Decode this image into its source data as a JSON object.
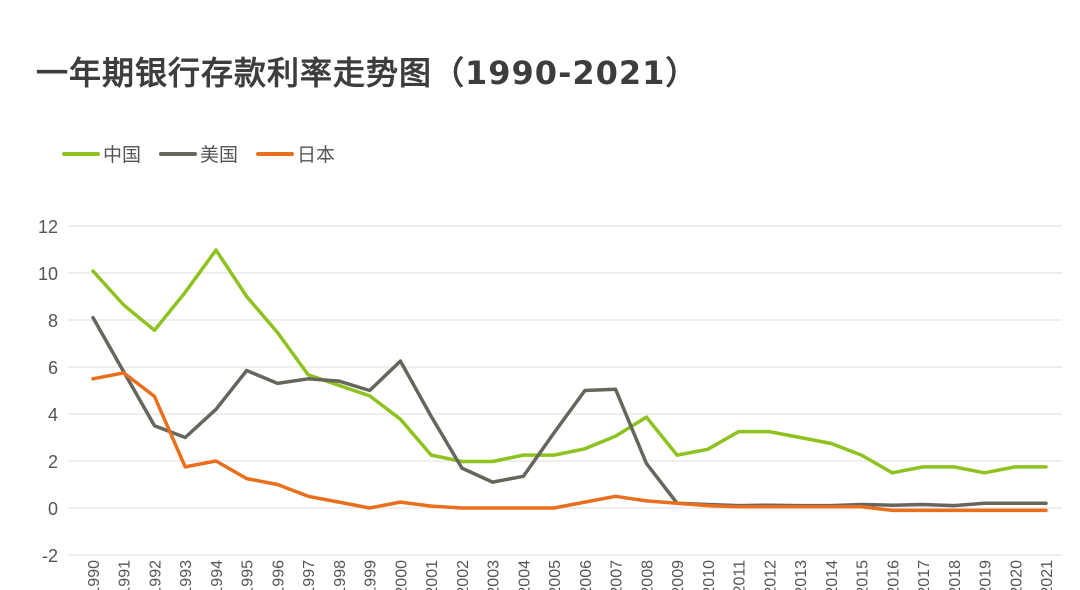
{
  "chart_data": {
    "type": "line",
    "title": "一年期银行存款利率走势图（1990-2021）",
    "xlabel": "",
    "ylabel": "",
    "ylim": [
      -2,
      12
    ],
    "yticks": [
      -2,
      0,
      2,
      4,
      6,
      8,
      10,
      12
    ],
    "grid": true,
    "legend_position": "top-left",
    "x": [
      "1990",
      "1991",
      "1992",
      "1993",
      "1994",
      "1995",
      "1996",
      "1997",
      "1998",
      "1999",
      "2000",
      "2001",
      "2002",
      "2003",
      "2004",
      "2005",
      "2006",
      "2007",
      "2008",
      "2009",
      "2010",
      "2011",
      "2012",
      "2013",
      "2014",
      "2015",
      "2016",
      "2017",
      "2018",
      "2019",
      "2020",
      "2021"
    ],
    "series": [
      {
        "name": "中国",
        "color": "#8dc21f",
        "values": [
          10.08,
          8.64,
          7.56,
          9.18,
          10.98,
          9.0,
          7.47,
          5.67,
          5.22,
          4.77,
          3.78,
          2.25,
          1.98,
          1.98,
          2.25,
          2.25,
          2.52,
          3.06,
          3.87,
          2.25,
          2.5,
          3.25,
          3.25,
          3.0,
          2.75,
          2.25,
          1.5,
          1.75,
          1.75,
          1.5,
          1.75,
          1.75
        ]
      },
      {
        "name": "美国",
        "color": "#66665e",
        "values": [
          8.1,
          5.8,
          3.5,
          3.0,
          4.2,
          5.85,
          5.3,
          5.5,
          5.4,
          5.0,
          6.25,
          3.9,
          1.7,
          1.1,
          1.35,
          3.2,
          5.0,
          5.05,
          1.9,
          0.2,
          0.15,
          0.1,
          0.12,
          0.1,
          0.1,
          0.15,
          0.12,
          0.15,
          0.1,
          0.2,
          0.2,
          0.2
        ]
      },
      {
        "name": "日本",
        "color": "#ea6f1c",
        "values": [
          5.5,
          5.75,
          4.75,
          1.75,
          2.0,
          1.25,
          1.0,
          0.5,
          0.25,
          0.0,
          0.25,
          0.08,
          0.0,
          0.0,
          0.0,
          0.0,
          0.25,
          0.5,
          0.3,
          0.2,
          0.1,
          0.05,
          0.05,
          0.05,
          0.05,
          0.05,
          -0.1,
          -0.1,
          -0.1,
          -0.1,
          -0.1,
          -0.1
        ]
      }
    ]
  }
}
